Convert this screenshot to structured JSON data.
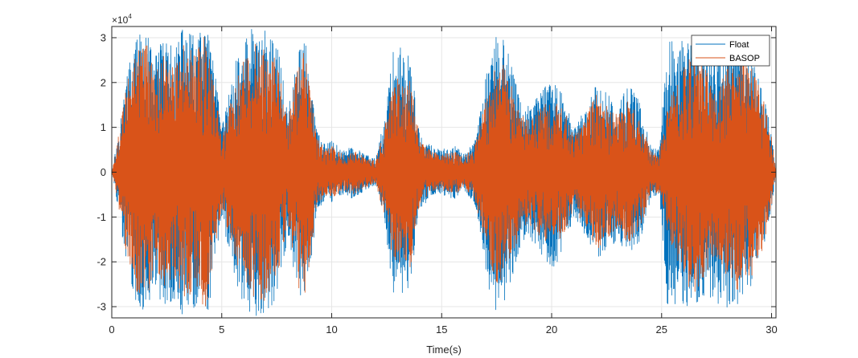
{
  "chart_data": {
    "type": "line",
    "title": "",
    "xlabel": "Time(s)",
    "ylabel": "",
    "y_exponent_label": "×10",
    "y_exponent_power": "4",
    "xlim": [
      0,
      30.2
    ],
    "ylim": [
      -3.25,
      3.25
    ],
    "x_ticks": [
      0,
      5,
      10,
      15,
      20,
      25,
      30
    ],
    "x_tick_labels": [
      "0",
      "5",
      "10",
      "15",
      "20",
      "25",
      "30"
    ],
    "y_ticks": [
      -3,
      -2,
      -1,
      0,
      1,
      2,
      3
    ],
    "y_tick_labels": [
      "-3",
      "-2",
      "-1",
      "0",
      "1",
      "2",
      "3"
    ],
    "grid": true,
    "legend_position": "top-right",
    "colors": {
      "float": "#0072BD",
      "basop": "#D95319",
      "grid": "#e6e6e6",
      "axis": "#262626"
    },
    "series": [
      {
        "name": "Float",
        "key": "float",
        "envelope_t": [
          0.2,
          0.7,
          1.0,
          1.5,
          2.0,
          2.4,
          2.8,
          3.3,
          3.8,
          4.3,
          4.6,
          5.0,
          5.6,
          6.0,
          6.5,
          6.8,
          7.2,
          7.6,
          8.0,
          8.5,
          8.8,
          9.3,
          9.7,
          10.0,
          10.5,
          11.0,
          11.5,
          12.0,
          12.4,
          12.8,
          13.2,
          13.6,
          14.0,
          14.5,
          15.0,
          15.6,
          16.0,
          16.5,
          17.0,
          17.4,
          17.8,
          18.2,
          18.6,
          19.0,
          19.5,
          20.0,
          20.5,
          21.0,
          21.5,
          22.0,
          22.5,
          23.0,
          23.5,
          24.0,
          24.5,
          24.9,
          25.3,
          25.7,
          26.2,
          26.7,
          27.2,
          27.7,
          28.2,
          28.7,
          29.2,
          29.6,
          30.0
        ],
        "envelope_amp": [
          0.6,
          2.2,
          2.9,
          3.2,
          2.6,
          3.1,
          2.8,
          3.3,
          3.0,
          3.3,
          2.6,
          1.0,
          2.4,
          3.0,
          3.3,
          3.2,
          3.1,
          2.7,
          1.4,
          2.8,
          3.0,
          1.0,
          0.6,
          0.7,
          0.5,
          0.6,
          0.4,
          0.3,
          1.2,
          2.7,
          2.8,
          2.5,
          0.8,
          0.6,
          0.5,
          0.6,
          0.4,
          0.7,
          2.2,
          3.3,
          3.0,
          2.4,
          1.6,
          1.5,
          1.8,
          2.2,
          1.8,
          1.0,
          1.4,
          2.0,
          1.8,
          1.5,
          2.0,
          1.6,
          0.6,
          0.5,
          3.3,
          2.9,
          3.0,
          2.9,
          2.8,
          3.0,
          3.1,
          2.9,
          2.4,
          1.8,
          0.9
        ]
      },
      {
        "name": "BASOP",
        "key": "basop",
        "envelope_t": [
          0.2,
          0.7,
          1.0,
          1.5,
          2.0,
          2.4,
          2.8,
          3.3,
          3.8,
          4.3,
          4.6,
          5.0,
          5.6,
          6.0,
          6.5,
          6.8,
          7.2,
          7.6,
          8.0,
          8.5,
          8.8,
          9.3,
          9.7,
          10.0,
          10.5,
          11.0,
          11.5,
          12.0,
          12.4,
          12.8,
          13.2,
          13.6,
          14.0,
          14.5,
          15.0,
          15.6,
          16.0,
          16.5,
          17.0,
          17.4,
          17.8,
          18.2,
          18.6,
          19.0,
          19.5,
          20.0,
          20.5,
          21.0,
          21.5,
          22.0,
          22.5,
          23.0,
          23.5,
          24.0,
          24.5,
          24.9,
          25.3,
          25.7,
          26.2,
          26.7,
          27.2,
          27.7,
          28.2,
          28.7,
          29.2,
          29.6,
          30.0
        ],
        "envelope_amp": [
          0.5,
          2.0,
          2.6,
          3.0,
          2.2,
          2.7,
          2.4,
          2.9,
          2.6,
          3.2,
          2.2,
          0.8,
          1.9,
          2.6,
          2.9,
          3.0,
          2.8,
          2.3,
          1.1,
          2.6,
          2.8,
          0.8,
          0.5,
          0.6,
          0.4,
          0.5,
          0.35,
          0.25,
          1.0,
          2.0,
          2.3,
          2.1,
          0.7,
          0.5,
          0.4,
          0.5,
          0.35,
          0.6,
          1.6,
          2.5,
          2.4,
          1.9,
          1.3,
          1.2,
          1.5,
          1.6,
          1.5,
          0.8,
          1.2,
          1.8,
          1.5,
          1.3,
          1.6,
          1.3,
          0.5,
          0.45,
          1.5,
          2.0,
          2.6,
          2.7,
          2.1,
          2.0,
          2.6,
          2.7,
          2.3,
          1.7,
          0.8
        ]
      }
    ]
  }
}
